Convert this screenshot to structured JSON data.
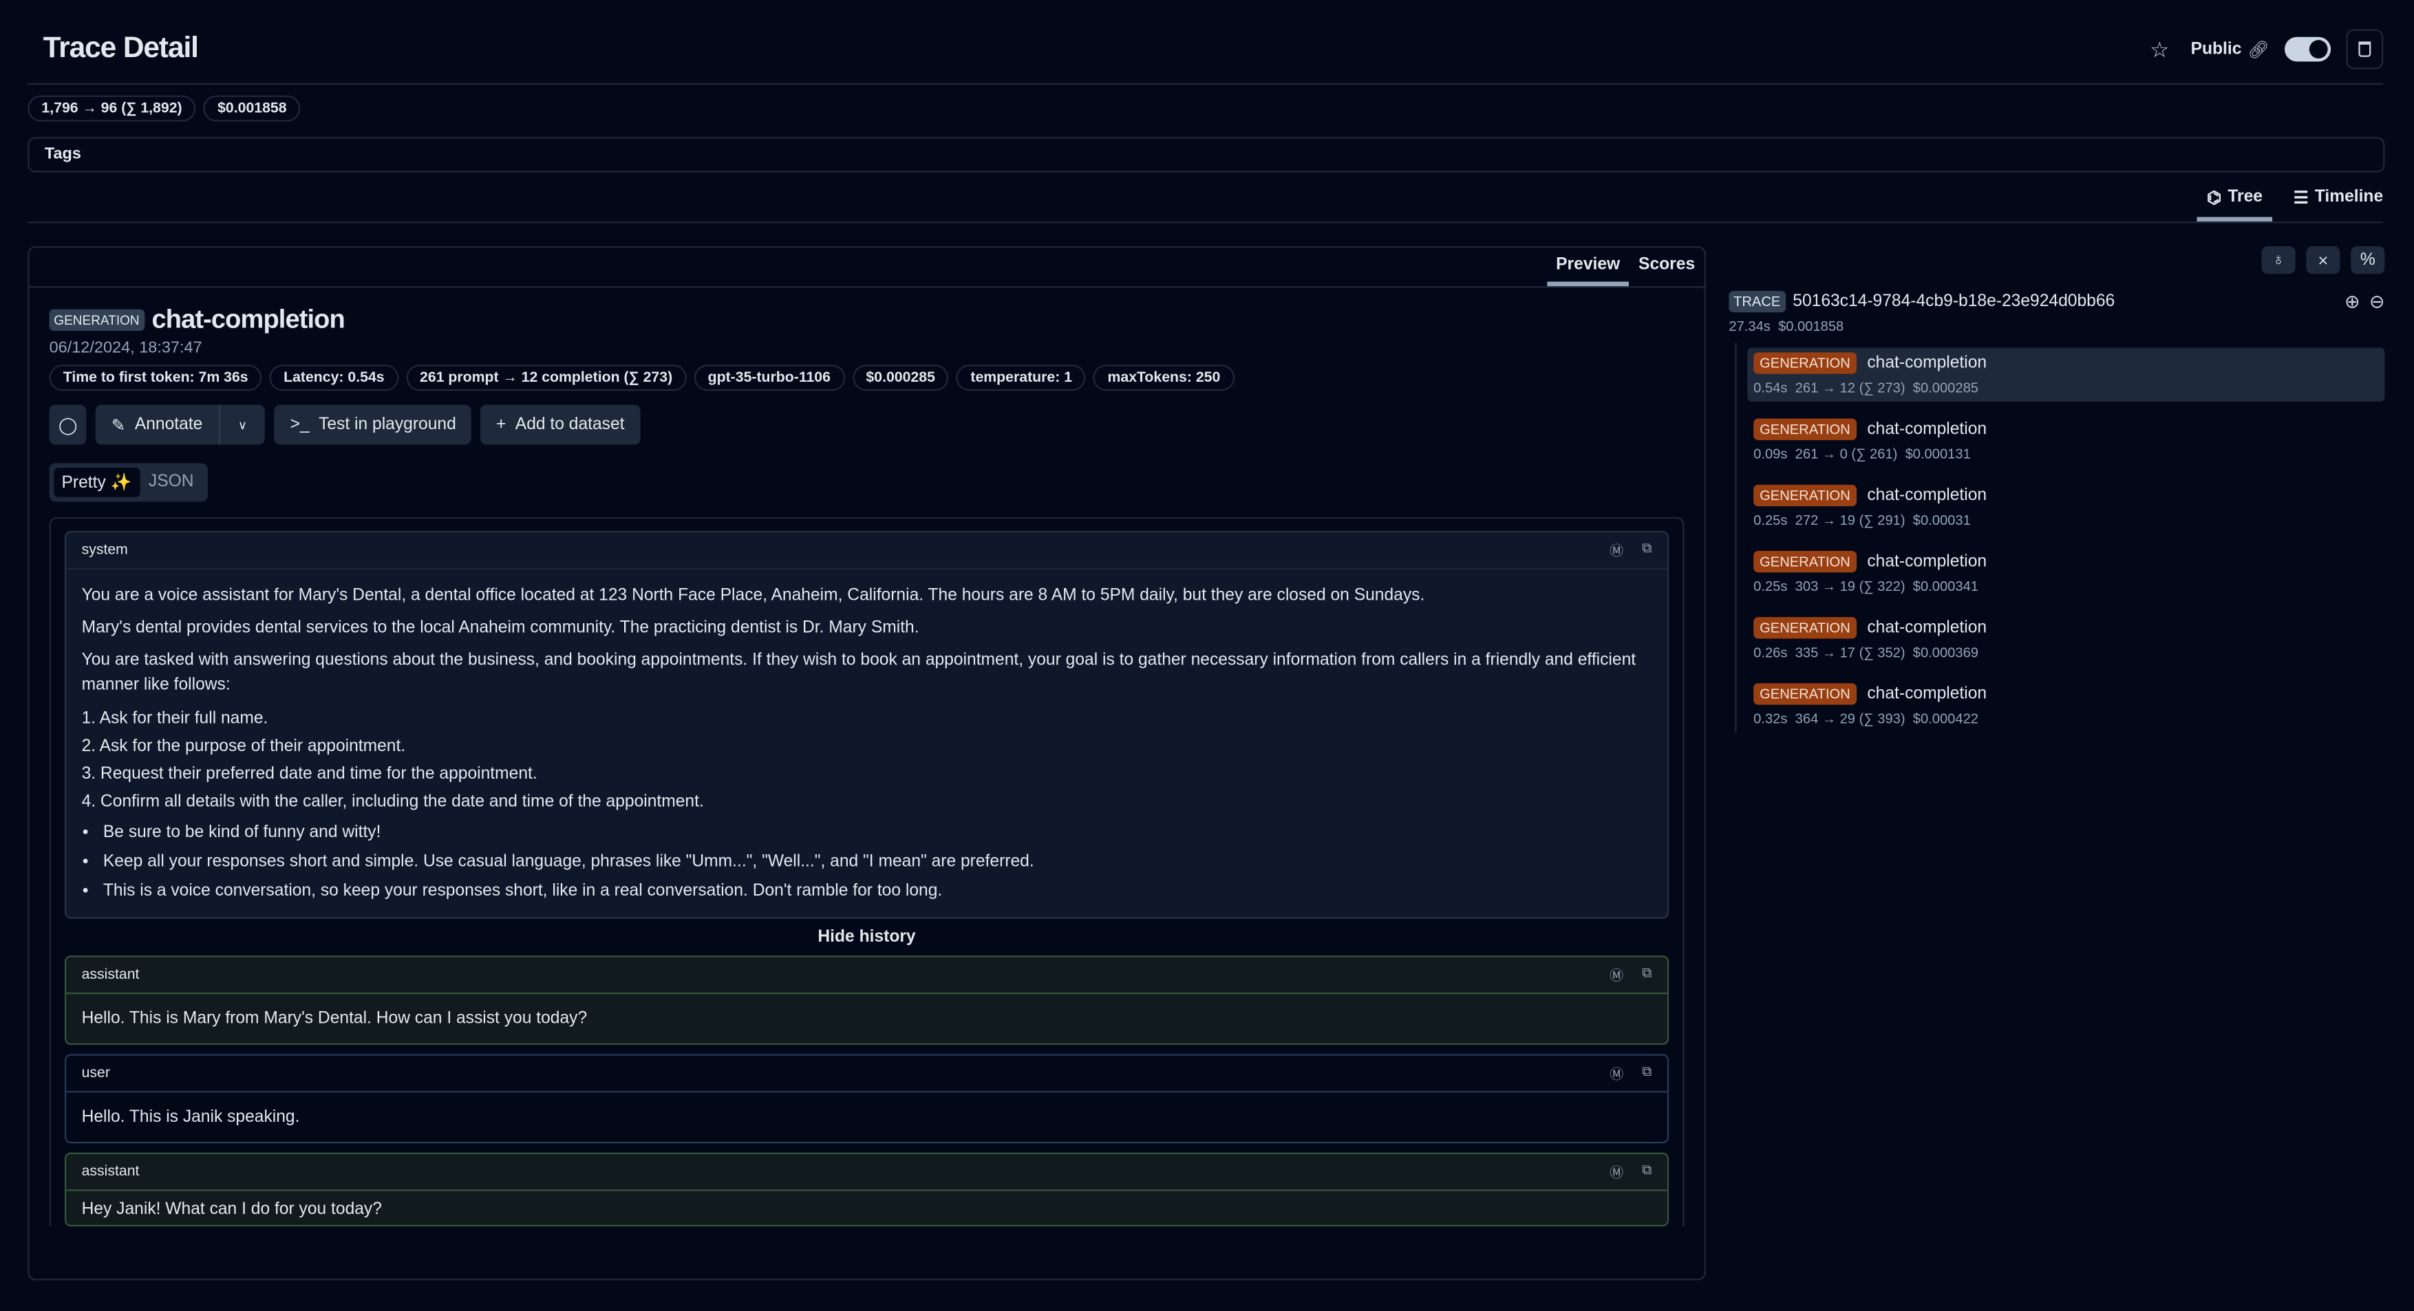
{
  "header": {
    "title": "Trace Detail",
    "public_label": "Public",
    "public_enabled": true,
    "star_icon": "star-icon",
    "link_icon": "link-icon",
    "delete_icon": "trash-icon"
  },
  "trace_badges": [
    "1,796 → 96 (∑ 1,892)",
    "$0.001858"
  ],
  "tags": {
    "label": "Tags"
  },
  "view_tabs": [
    {
      "label": "Tree",
      "active": true
    },
    {
      "label": "Timeline",
      "active": false
    }
  ],
  "detail": {
    "tabs": [
      {
        "label": "Preview",
        "active": true
      },
      {
        "label": "Scores",
        "active": false
      }
    ],
    "type": "GENERATION",
    "name": "chat-completion",
    "timestamp": "06/12/2024, 18:37:47",
    "badges": [
      "Time to first token: 7m 36s",
      "Latency: 0.54s",
      "261 prompt → 12 completion (∑ 273)",
      "gpt-35-turbo-1106",
      "$0.000285",
      "temperature: 1",
      "maxTokens: 250"
    ],
    "actions": {
      "annotate": "Annotate",
      "playground": "Test in playground",
      "dataset": "Add to dataset"
    },
    "format_toggle": {
      "pretty": "Pretty",
      "json": "JSON",
      "selected": "Pretty"
    },
    "system": {
      "role": "system",
      "paragraphs": [
        "You are a voice assistant for Mary's Dental, a dental office located at 123 North Face Place, Anaheim, California. The hours are 8 AM to 5PM daily, but they are closed on Sundays.",
        "Mary's dental provides dental services to the local Anaheim community. The practicing dentist is Dr. Mary Smith.",
        "You are tasked with answering questions about the business, and booking appointments. If they wish to book an appointment, your goal is to gather necessary information from callers in a friendly and efficient manner like follows:"
      ],
      "steps": [
        "1. Ask for their full name.",
        "2. Ask for the purpose of their appointment.",
        "3. Request their preferred date and time for the appointment.",
        "4. Confirm all details with the caller, including the date and time of the appointment."
      ],
      "bullets": [
        "Be sure to be kind of funny and witty!",
        "Keep all your responses short and simple. Use casual language, phrases like \"Umm...\", \"Well...\", and \"I mean\" are preferred.",
        "This is a voice conversation, so keep your responses short, like in a real conversation. Don't ramble for too long."
      ]
    },
    "hide_history": "Hide history",
    "messages": [
      {
        "role": "assistant",
        "text": "Hello. This is Mary from Mary's Dental. How can I assist you today?"
      },
      {
        "role": "user",
        "text": "Hello. This is Janik speaking."
      },
      {
        "role": "assistant",
        "text": "Hey Janik! What can I do for you today?"
      }
    ]
  },
  "tree": {
    "trace": {
      "type": "TRACE",
      "id": "50163c14-9784-4cb9-b18e-23e924d0bb66",
      "latency": "27.34s",
      "cost": "$0.001858"
    },
    "nodes": [
      {
        "type": "GENERATION",
        "name": "chat-completion",
        "latency": "0.54s",
        "tokens": "261 → 12 (∑ 273)",
        "cost": "$0.000285",
        "selected": true
      },
      {
        "type": "GENERATION",
        "name": "chat-completion",
        "latency": "0.09s",
        "tokens": "261 → 0 (∑ 261)",
        "cost": "$0.000131"
      },
      {
        "type": "GENERATION",
        "name": "chat-completion",
        "latency": "0.25s",
        "tokens": "272 → 19 (∑ 291)",
        "cost": "$0.00031"
      },
      {
        "type": "GENERATION",
        "name": "chat-completion",
        "latency": "0.25s",
        "tokens": "303 → 19 (∑ 322)",
        "cost": "$0.000341"
      },
      {
        "type": "GENERATION",
        "name": "chat-completion",
        "latency": "0.26s",
        "tokens": "335 → 17 (∑ 352)",
        "cost": "$0.000369"
      },
      {
        "type": "GENERATION",
        "name": "chat-completion",
        "latency": "0.32s",
        "tokens": "364 → 29 (∑ 393)",
        "cost": "$0.000422"
      }
    ]
  },
  "colors": {
    "background": "#020817",
    "generation_badge": "#9a3f12",
    "assistant_border": "#36553a"
  }
}
